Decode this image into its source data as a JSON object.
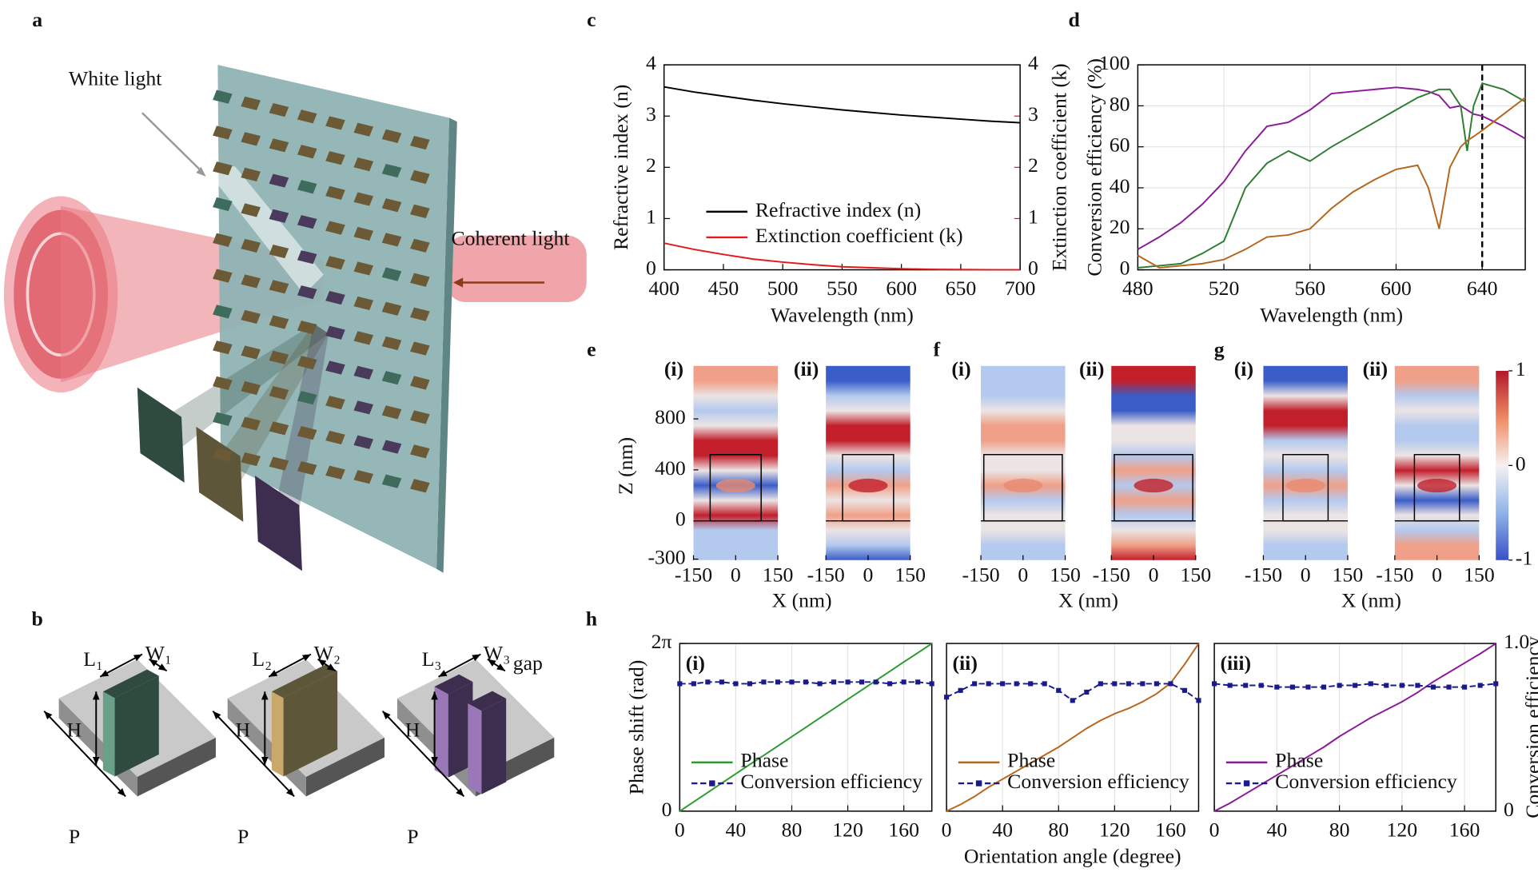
{
  "panel_labels": [
    "a",
    "b",
    "c",
    "d",
    "e",
    "f",
    "g",
    "h"
  ],
  "illustration_a": {
    "white_light": "White light",
    "coherent_light": "Coherent light"
  },
  "illustration_b": {
    "units": [
      {
        "length": "L₁",
        "width": "W₁",
        "height": "H",
        "period": "P"
      },
      {
        "length": "L₂",
        "width": "W₂",
        "height": "H",
        "period": "P"
      },
      {
        "length": "L₃",
        "width": "W₃",
        "gap": "gap",
        "height": "H",
        "period": "P"
      }
    ]
  },
  "field_maps": {
    "panels": [
      {
        "subplots": [
          "(i)",
          "(ii)"
        ]
      },
      {
        "subplots": [
          "(i)",
          "(ii)"
        ]
      },
      {
        "subplots": [
          "(i)",
          "(ii)"
        ]
      }
    ],
    "ylabel": "Z (nm)",
    "yticks": [
      800,
      400,
      0,
      -300
    ],
    "xlabel": "X (nm)",
    "xticks": [
      -150,
      0,
      150
    ],
    "colorbar_ticks": [
      1,
      0,
      -1
    ]
  },
  "chart_data": [
    {
      "type": "line",
      "xlabel": "Wavelength (nm)",
      "ylabel": "Refractive index (n)",
      "y2label": "Extinction coefficient (k)",
      "y2color": "#e41a1c",
      "grid": false,
      "legend": "lower left",
      "x": [
        400,
        425,
        450,
        475,
        500,
        525,
        550,
        575,
        600,
        625,
        650,
        675,
        700
      ],
      "xlim": [
        400,
        700
      ],
      "xticks": [
        400,
        450,
        500,
        550,
        600,
        650,
        700
      ],
      "ylim": [
        0,
        4
      ],
      "yticks": [
        0,
        1,
        2,
        3,
        4
      ],
      "y2lim": [
        0,
        4
      ],
      "y2ticks": [
        0,
        1,
        2,
        3,
        4
      ],
      "series": [
        {
          "name": "Refractive index (n)",
          "color": "#000000",
          "values": [
            3.57,
            3.47,
            3.39,
            3.31,
            3.24,
            3.18,
            3.12,
            3.07,
            3.02,
            2.98,
            2.94,
            2.9,
            2.87
          ]
        },
        {
          "name": "Extinction coefficient (k)",
          "color": "#e41a1c",
          "axis": "y2",
          "values": [
            0.52,
            0.4,
            0.3,
            0.21,
            0.15,
            0.1,
            0.06,
            0.04,
            0.02,
            0.01,
            0.005,
            0.002,
            0
          ]
        }
      ]
    },
    {
      "type": "line",
      "xlabel": "Wavelength (nm)",
      "ylabel": "Conversion efficiency (%)",
      "grid": true,
      "vline": 640,
      "x": [
        480,
        490,
        500,
        510,
        520,
        530,
        540,
        550,
        560,
        570,
        580,
        590,
        600,
        610,
        615,
        620,
        625,
        630,
        633,
        636,
        640,
        650,
        660
      ],
      "xlim": [
        480,
        660
      ],
      "xticks": [
        480,
        520,
        560,
        600,
        640
      ],
      "ylim": [
        0,
        100
      ],
      "yticks": [
        0,
        20,
        40,
        60,
        80,
        100
      ],
      "series": [
        {
          "color": "#8b1a9a",
          "values": [
            10,
            16,
            23,
            32,
            43,
            58,
            70,
            72,
            78,
            86,
            87,
            88,
            89,
            88,
            87,
            85,
            79,
            80,
            78,
            76,
            75,
            70,
            64
          ]
        },
        {
          "color": "#2e7d32",
          "values": [
            1,
            2,
            3,
            8,
            14,
            40,
            52,
            58,
            53,
            60,
            66,
            72,
            78,
            84,
            86,
            88,
            88,
            80,
            58,
            80,
            91,
            88,
            82
          ]
        },
        {
          "color": "#b5651d",
          "values": [
            7,
            1,
            2,
            3,
            5,
            10,
            16,
            17,
            20,
            30,
            38,
            44,
            49,
            51,
            40,
            20,
            50,
            60,
            63,
            65,
            68,
            76,
            84
          ]
        }
      ]
    },
    {
      "type": "line",
      "title": "(i)",
      "ylabel": "Phase shift (rad)",
      "grid": true,
      "legend": "lower left",
      "x": [
        0,
        10,
        20,
        30,
        40,
        50,
        60,
        70,
        80,
        90,
        100,
        110,
        120,
        130,
        140,
        150,
        160,
        170,
        180
      ],
      "xlim": [
        0,
        180
      ],
      "xticks": [
        0,
        40,
        80,
        120,
        160
      ],
      "ylim": [
        0,
        6.2832
      ],
      "yticks": [
        0,
        {
          "value": 6.2832,
          "label": "2π"
        }
      ],
      "y2lim": [
        0,
        1
      ],
      "series": [
        {
          "name": "Phase",
          "color": "#2e9a2e",
          "values": [
            0,
            0.35,
            0.7,
            1.05,
            1.4,
            1.75,
            2.09,
            2.44,
            2.79,
            3.14,
            3.49,
            3.84,
            4.19,
            4.54,
            4.89,
            5.24,
            5.59,
            5.93,
            6.28
          ]
        },
        {
          "name": "Conversion efficiency",
          "color": "#1a1a8c",
          "axis": "y2",
          "linestyle": "dashed",
          "marker": "square",
          "values": [
            0.76,
            0.76,
            0.77,
            0.77,
            0.76,
            0.76,
            0.77,
            0.77,
            0.77,
            0.77,
            0.76,
            0.77,
            0.77,
            0.77,
            0.77,
            0.76,
            0.77,
            0.77,
            0.76
          ]
        }
      ]
    },
    {
      "type": "line",
      "title": "(ii)",
      "xlabel": "Orientation angle (degree)",
      "grid": true,
      "legend": "lower left",
      "x": [
        0,
        10,
        20,
        30,
        40,
        50,
        60,
        70,
        80,
        90,
        100,
        110,
        120,
        130,
        140,
        150,
        160,
        170,
        180
      ],
      "xlim": [
        0,
        180
      ],
      "xticks": [
        0,
        40,
        80,
        120,
        160
      ],
      "ylim": [
        0,
        6.2832
      ],
      "y2lim": [
        0,
        1
      ],
      "series": [
        {
          "name": "Phase",
          "color": "#b8651d",
          "values": [
            0,
            0.25,
            0.55,
            0.9,
            1.2,
            1.5,
            1.8,
            2.1,
            2.4,
            2.75,
            3.1,
            3.4,
            3.65,
            3.85,
            4.1,
            4.4,
            4.8,
            5.5,
            6.28
          ]
        },
        {
          "name": "Conversion efficiency",
          "color": "#1a1a8c",
          "axis": "y2",
          "linestyle": "dashed",
          "marker": "square",
          "values": [
            0.68,
            0.72,
            0.76,
            0.76,
            0.76,
            0.76,
            0.76,
            0.76,
            0.72,
            0.66,
            0.71,
            0.76,
            0.76,
            0.76,
            0.76,
            0.76,
            0.76,
            0.72,
            0.66
          ]
        }
      ]
    },
    {
      "type": "line",
      "title": "(iii)",
      "y2label": "Conversion efficiency",
      "y2color": "#1a1a8c",
      "grid": true,
      "legend": "lower left",
      "x": [
        0,
        10,
        20,
        30,
        40,
        50,
        60,
        70,
        80,
        90,
        100,
        110,
        120,
        130,
        140,
        150,
        160,
        170,
        180
      ],
      "xlim": [
        0,
        180
      ],
      "xticks": [
        0,
        40,
        80,
        120,
        160
      ],
      "ylim": [
        0,
        6.2832
      ],
      "y2lim": [
        0,
        1
      ],
      "y2ticks": [
        0,
        {
          "value": 1,
          "label": "1.0"
        }
      ],
      "series": [
        {
          "name": "Phase",
          "color": "#8b1a9a",
          "values": [
            0,
            0.3,
            0.65,
            1.0,
            1.35,
            1.7,
            2.05,
            2.4,
            2.8,
            3.15,
            3.5,
            3.8,
            4.1,
            4.45,
            4.85,
            5.2,
            5.55,
            5.9,
            6.28
          ]
        },
        {
          "name": "Conversion efficiency",
          "color": "#1a1a8c",
          "axis": "y2",
          "linestyle": "dashed",
          "marker": "square",
          "values": [
            0.76,
            0.75,
            0.75,
            0.75,
            0.74,
            0.74,
            0.74,
            0.74,
            0.75,
            0.75,
            0.76,
            0.75,
            0.75,
            0.75,
            0.74,
            0.74,
            0.74,
            0.75,
            0.76
          ]
        }
      ]
    }
  ]
}
